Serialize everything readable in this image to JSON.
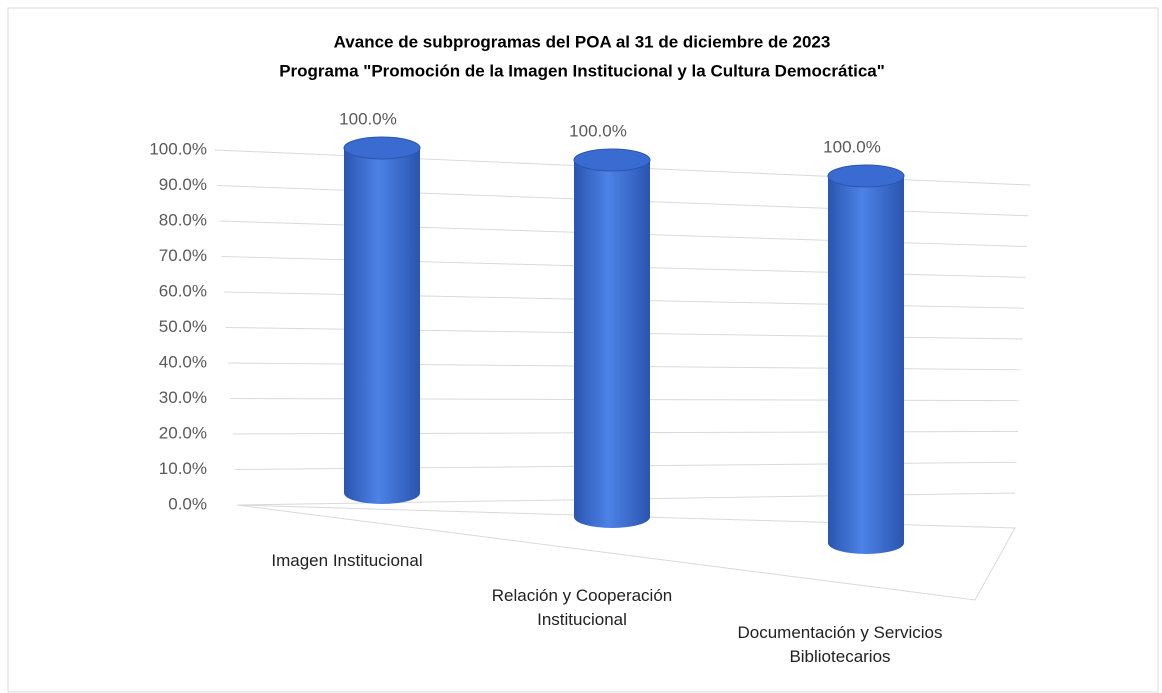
{
  "chart_data": {
    "type": "cylinder",
    "title": "Avance de subprogramas del POA al 31 de diciembre de 2023",
    "subtitle": "Programa \"Promoción de la Imagen Institucional  y la Cultura Democrática\"",
    "categories": [
      "Imagen Institucional",
      "Relación y Cooperación Institucional",
      "Documentación y Servicios Bibliotecarios"
    ],
    "values": [
      100,
      100,
      100
    ],
    "value_labels": [
      "100.0%",
      "100.0%",
      "100.0%"
    ],
    "color": "#3a6bd0",
    "ylim": [
      0,
      100
    ],
    "yticks": [
      {
        "value": 0,
        "label": "0.0%"
      },
      {
        "value": 10,
        "label": "10.0%"
      },
      {
        "value": 20,
        "label": "20.0%"
      },
      {
        "value": 30,
        "label": "30.0%"
      },
      {
        "value": 40,
        "label": "40.0%"
      },
      {
        "value": 50,
        "label": "50.0%"
      },
      {
        "value": 60,
        "label": "60.0%"
      },
      {
        "value": 70,
        "label": "70.0%"
      },
      {
        "value": 80,
        "label": "80.0%"
      },
      {
        "value": 90,
        "label": "90.0%"
      },
      {
        "value": 100,
        "label": "100.0%"
      }
    ],
    "grid": true
  }
}
